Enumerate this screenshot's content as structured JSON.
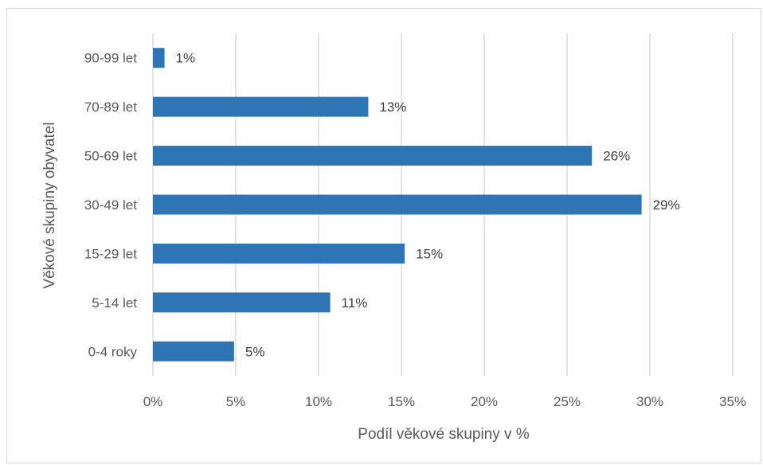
{
  "chart_data": {
    "type": "bar",
    "orientation": "horizontal",
    "categories": [
      "0-4 roky",
      "5-14 let",
      "15-29 let",
      "30-49 let",
      "50-69 let",
      "70-89 let",
      "90-99 let"
    ],
    "values": [
      4.9,
      10.7,
      15.2,
      29.5,
      26.5,
      13.0,
      0.7
    ],
    "data_labels": [
      "5%",
      "11%",
      "15%",
      "29%",
      "26%",
      "13%",
      "1%"
    ],
    "xlabel": "Podíl věkové skupiny v %",
    "ylabel": "Věkové skupiny obyvatel",
    "xlim": [
      0,
      35
    ],
    "x_ticks": [
      0,
      5,
      10,
      15,
      20,
      25,
      30,
      35
    ],
    "x_tick_labels": [
      "0%",
      "5%",
      "10%",
      "15%",
      "20%",
      "25%",
      "30%",
      "35%"
    ],
    "grid": true,
    "bar_color": "#2e75b6",
    "grid_color": "#d9d9d9"
  }
}
